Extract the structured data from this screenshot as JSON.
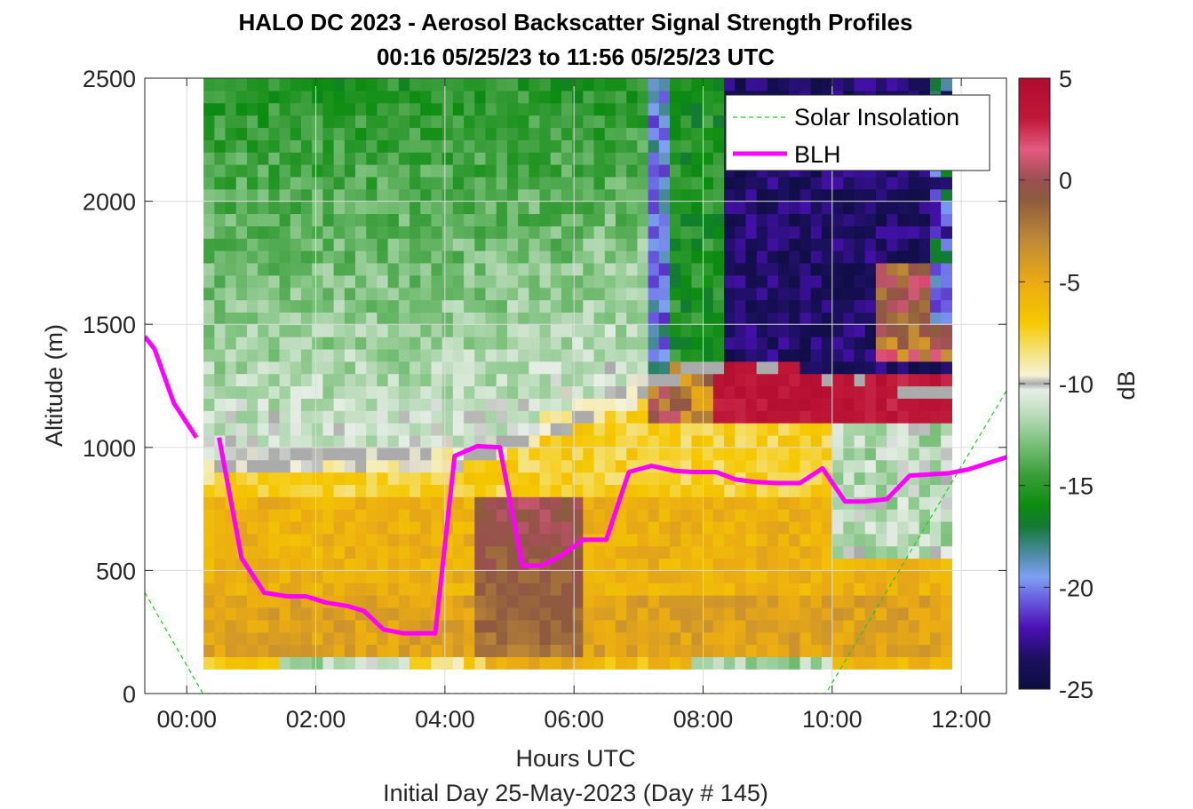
{
  "chart_data": {
    "type": "heatmap",
    "title_line1": "HALO DC 2023 - Aerosol Backscatter Signal Strength Profiles",
    "title_line2": "00:16 05/25/23 to 11:56 05/25/23  UTC",
    "xlabel": "Hours UTC",
    "xlabel2": "Initial Day 25-May-2023 (Day # 145)",
    "ylabel": "Altitude (m)",
    "colorbar_label": "dB",
    "xlim": [
      -0.65,
      12.7
    ],
    "ylim": [
      0,
      2500
    ],
    "clim": [
      -25,
      5
    ],
    "grid": true,
    "legend_position": "top-right",
    "x_ticks": [
      0,
      2,
      4,
      6,
      8,
      10,
      12
    ],
    "x_tick_labels": [
      "00:00",
      "02:00",
      "04:00",
      "06:00",
      "08:00",
      "10:00",
      "12:00"
    ],
    "y_ticks": [
      0,
      500,
      1000,
      1500,
      2000,
      2500
    ],
    "y_tick_labels": [
      "0",
      "500",
      "1000",
      "1500",
      "2000",
      "2500"
    ],
    "colorbar_ticks": [
      5,
      0,
      -5,
      -10,
      -15,
      -20,
      -25
    ],
    "colorbar_tick_labels": [
      "5",
      "0",
      "-5",
      "-10",
      "-15",
      "-20",
      "-25"
    ],
    "colormap": [
      {
        "v": -25,
        "c": "#0d0d40"
      },
      {
        "v": -23.5,
        "c": "#1c1060"
      },
      {
        "v": -22,
        "c": "#4a10b4"
      },
      {
        "v": -20.5,
        "c": "#6a62e2"
      },
      {
        "v": -19.5,
        "c": "#7ea0f2"
      },
      {
        "v": -18.3,
        "c": "#4a8aa0"
      },
      {
        "v": -17,
        "c": "#137a36"
      },
      {
        "v": -16,
        "c": "#0c8c10"
      },
      {
        "v": -14.5,
        "c": "#3a9e3a"
      },
      {
        "v": -13,
        "c": "#78bf78"
      },
      {
        "v": -11.5,
        "c": "#bcdcbc"
      },
      {
        "v": -10.3,
        "c": "#e6eee6"
      },
      {
        "v": -10,
        "c": "#ababab"
      },
      {
        "v": -9.6,
        "c": "#f6f2d8"
      },
      {
        "v": -8.5,
        "c": "#f5e382"
      },
      {
        "v": -7,
        "c": "#f5c800"
      },
      {
        "v": -5,
        "c": "#eaaa14"
      },
      {
        "v": -3,
        "c": "#c08a36"
      },
      {
        "v": -1,
        "c": "#8e5c3e"
      },
      {
        "v": 0,
        "c": "#9a5050"
      },
      {
        "v": 1.5,
        "c": "#e25a80"
      },
      {
        "v": 3,
        "c": "#c01838"
      },
      {
        "v": 5,
        "c": "#b00a2e"
      }
    ],
    "heatmap_x_start": 0.26,
    "heatmap_x_step": 0.168,
    "heatmap_y_start": 100,
    "heatmap_y_step": 50,
    "heatmap_columns_x_range": [
      0.26,
      11.86
    ],
    "series": [
      {
        "name": "Solar Insolation",
        "color": "#22cc22",
        "style": "dashed",
        "x": [
          -0.65,
          0.25,
          9.9,
          12.7
        ],
        "y": [
          410,
          0,
          0,
          1230
        ]
      },
      {
        "name": "BLH",
        "color": "#ff00ff",
        "style": "solid",
        "segments": [
          {
            "x": [
              -0.65,
              -0.5,
              -0.2,
              0.15
            ],
            "y": [
              1450,
              1400,
              1180,
              1040
            ]
          },
          {
            "x": [
              0.5,
              0.85,
              1.2,
              1.55,
              1.85,
              2.15,
              2.5,
              2.75,
              3.05,
              3.35,
              3.6,
              3.85,
              4.15,
              4.5,
              4.85,
              5.2,
              5.5,
              5.8,
              6.15,
              6.5,
              6.85,
              7.2,
              7.55,
              7.85,
              8.2,
              8.5,
              8.8,
              9.15,
              9.5,
              9.85,
              10.2,
              10.5,
              10.85,
              11.2,
              11.5,
              11.8,
              12.1,
              12.7
            ],
            "y": [
              1040,
              550,
              410,
              395,
              395,
              370,
              355,
              335,
              260,
              245,
              245,
              245,
              965,
              1005,
              1000,
              520,
              520,
              560,
              625,
              625,
              900,
              925,
              905,
              900,
              900,
              870,
              860,
              855,
              855,
              915,
              780,
              780,
              790,
              885,
              890,
              895,
              910,
              960
            ]
          }
        ]
      }
    ],
    "legend": [
      {
        "label": "Solar Insolation",
        "color": "#22cc22",
        "style": "dashed"
      },
      {
        "label": "BLH",
        "color": "#ff00ff",
        "style": "solid"
      }
    ]
  }
}
